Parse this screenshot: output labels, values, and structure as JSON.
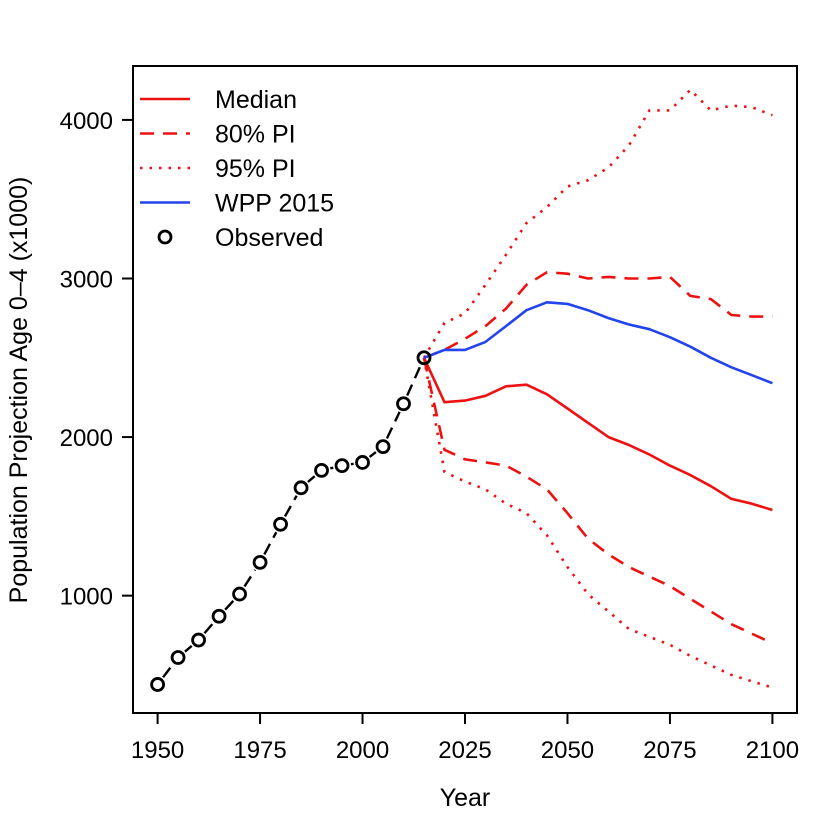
{
  "chart_data": {
    "type": "line",
    "title": "",
    "xlabel": "Year",
    "ylabel": "Population Projection Age 0–4 (x1000)",
    "xlim": [
      1944,
      2106
    ],
    "ylim": [
      260,
      4340
    ],
    "xticks": [
      1950,
      1975,
      2000,
      2025,
      2050,
      2075,
      2100
    ],
    "yticks": [
      1000,
      2000,
      3000,
      4000
    ],
    "grid": false,
    "legend": {
      "position": "top-left",
      "entries": [
        {
          "label": "Median",
          "style": "solid",
          "color": "#ee1111"
        },
        {
          "label": "80% PI",
          "style": "dashed",
          "color": "#ee1111"
        },
        {
          "label": "95% PI",
          "style": "dotted",
          "color": "#ee1111"
        },
        {
          "label": "WPP 2015",
          "style": "solid",
          "color": "#2244ee"
        },
        {
          "label": "Observed",
          "style": "circle",
          "color": "#000000"
        }
      ]
    },
    "observed": {
      "name": "Observed",
      "x": [
        1950,
        1955,
        1960,
        1965,
        1970,
        1975,
        1980,
        1985,
        1990,
        1995,
        2000,
        2005,
        2010,
        2015
      ],
      "y": [
        440,
        610,
        720,
        870,
        1010,
        1210,
        1450,
        1680,
        1790,
        1820,
        1840,
        1940,
        2210,
        2500
      ]
    },
    "series": [
      {
        "name": "Median",
        "style": "solid",
        "color": "#ee1111",
        "x": [
          2015,
          2020,
          2025,
          2030,
          2035,
          2040,
          2045,
          2050,
          2055,
          2060,
          2065,
          2070,
          2075,
          2080,
          2085,
          2090,
          2095,
          2100
        ],
        "values": [
          2500,
          2220,
          2230,
          2260,
          2320,
          2330,
          2270,
          2180,
          2090,
          2000,
          1950,
          1890,
          1820,
          1760,
          1690,
          1610,
          1580,
          1540
        ]
      },
      {
        "name": "80% PI upper",
        "style": "dashed",
        "color": "#ee1111",
        "x": [
          2015,
          2020,
          2025,
          2030,
          2035,
          2040,
          2045,
          2050,
          2055,
          2060,
          2065,
          2070,
          2075,
          2080,
          2085,
          2090,
          2095,
          2100
        ],
        "values": [
          2500,
          2550,
          2620,
          2700,
          2810,
          2960,
          3040,
          3030,
          3000,
          3010,
          3000,
          3000,
          3010,
          2890,
          2870,
          2770,
          2760,
          2760
        ]
      },
      {
        "name": "80% PI lower",
        "style": "dashed",
        "color": "#ee1111",
        "x": [
          2015,
          2020,
          2025,
          2030,
          2035,
          2040,
          2045,
          2050,
          2055,
          2060,
          2065,
          2070,
          2075,
          2080,
          2085,
          2090,
          2095,
          2100
        ],
        "values": [
          2500,
          1920,
          1860,
          1840,
          1820,
          1750,
          1670,
          1520,
          1360,
          1260,
          1180,
          1120,
          1060,
          980,
          900,
          820,
          760,
          700
        ]
      },
      {
        "name": "95% PI upper",
        "style": "dotted",
        "color": "#ee1111",
        "x": [
          2015,
          2020,
          2025,
          2030,
          2035,
          2040,
          2045,
          2050,
          2055,
          2060,
          2065,
          2070,
          2075,
          2080,
          2085,
          2090,
          2095,
          2100
        ],
        "values": [
          2500,
          2720,
          2780,
          2960,
          3150,
          3350,
          3450,
          3580,
          3620,
          3700,
          3840,
          4060,
          4060,
          4190,
          4060,
          4090,
          4080,
          4030
        ]
      },
      {
        "name": "95% PI lower",
        "style": "dotted",
        "color": "#ee1111",
        "x": [
          2015,
          2020,
          2025,
          2030,
          2035,
          2040,
          2045,
          2050,
          2055,
          2060,
          2065,
          2070,
          2075,
          2080,
          2085,
          2090,
          2095,
          2100
        ],
        "values": [
          2500,
          1780,
          1720,
          1670,
          1580,
          1520,
          1380,
          1180,
          1010,
          900,
          790,
          740,
          690,
          620,
          560,
          500,
          460,
          420
        ]
      },
      {
        "name": "WPP 2015",
        "style": "solid",
        "color": "#2244ee",
        "x": [
          2015,
          2020,
          2025,
          2030,
          2035,
          2040,
          2045,
          2050,
          2055,
          2060,
          2065,
          2070,
          2075,
          2080,
          2085,
          2090,
          2095,
          2100
        ],
        "values": [
          2500,
          2550,
          2550,
          2600,
          2700,
          2800,
          2850,
          2840,
          2800,
          2750,
          2710,
          2680,
          2630,
          2570,
          2500,
          2440,
          2390,
          2340
        ]
      }
    ]
  }
}
